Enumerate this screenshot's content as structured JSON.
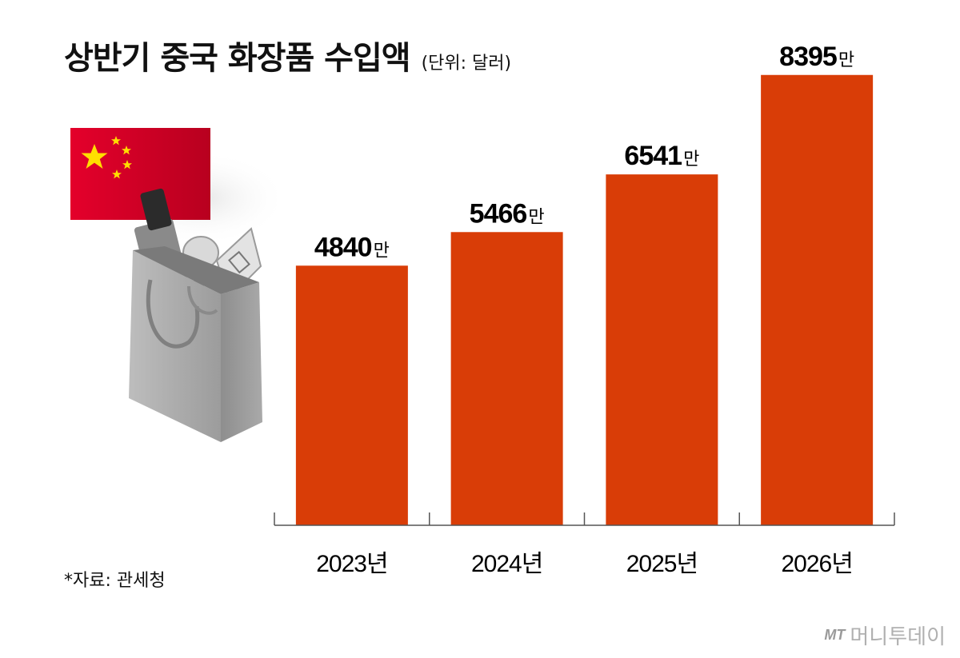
{
  "header": {
    "title": "상반기 중국 화장품 수입액",
    "unit": "(단위: 달러)"
  },
  "source": "*자료: 관세청",
  "logo": {
    "mark": "MT",
    "text": "머니투데이"
  },
  "colors": {
    "bar": "#D93D07",
    "axis": "#555555",
    "flag_red": "#D8002A",
    "flag_star": "#FFDE00"
  },
  "chart_data": {
    "type": "bar",
    "title": "상반기 중국 화장품 수입액",
    "unit": "(단위: 달러)",
    "categories": [
      "2023년",
      "2024년",
      "2025년",
      "2026년"
    ],
    "values": [
      4840,
      5466,
      6541,
      8395
    ],
    "value_labels": [
      "4840",
      "5466",
      "6541",
      "8395"
    ],
    "value_suffix": "만",
    "ylim": [
      0,
      8600
    ],
    "grid": false,
    "legend": "none"
  }
}
